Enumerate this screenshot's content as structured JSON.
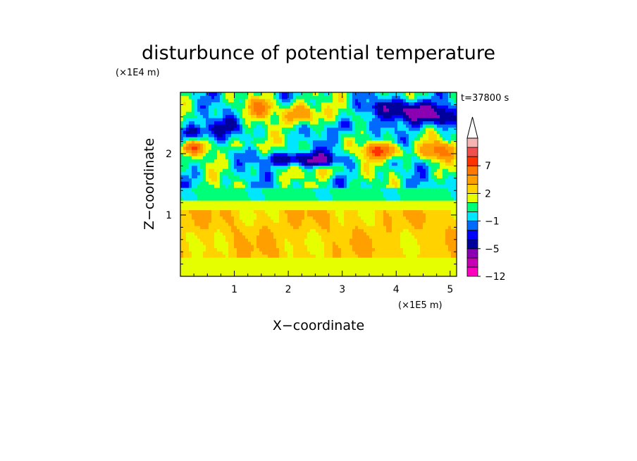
{
  "chart_data": {
    "type": "heatmap",
    "title": "disturbunce of potential temperature",
    "xlabel": "X−coordinate",
    "ylabel": "Z−coordinate",
    "xunit": "(×1E5 m)",
    "yunit": "(×1E4 m)",
    "time_label": "t=37800 s",
    "xlim": [
      0,
      5.12
    ],
    "ylim": [
      0,
      3.0
    ],
    "x_ticks": [
      1,
      2,
      3,
      4,
      5
    ],
    "y_ticks": [
      1,
      2
    ],
    "grid": false,
    "colorbar": {
      "levels": [
        -12,
        -9,
        -7,
        -5,
        -3,
        -2,
        -1,
        0,
        1,
        2,
        3,
        5,
        7,
        9,
        12
      ],
      "colors": [
        "#ff00c0",
        "#c800b4",
        "#8c00b4",
        "#00009b",
        "#0000ff",
        "#006aff",
        "#00e6ff",
        "#00ff78",
        "#e6ff00",
        "#ffd200",
        "#ffa000",
        "#ff7800",
        "#ff3200",
        "#ee5050",
        "#f5b4b4"
      ],
      "tick_labels": [
        {
          "value": 7,
          "label": "7"
        },
        {
          "value": 2,
          "label": "2"
        },
        {
          "value": -1,
          "label": "−1"
        },
        {
          "value": -5,
          "label": "−5"
        },
        {
          "value": -12,
          "label": "−12"
        }
      ],
      "extend": "max"
    }
  }
}
